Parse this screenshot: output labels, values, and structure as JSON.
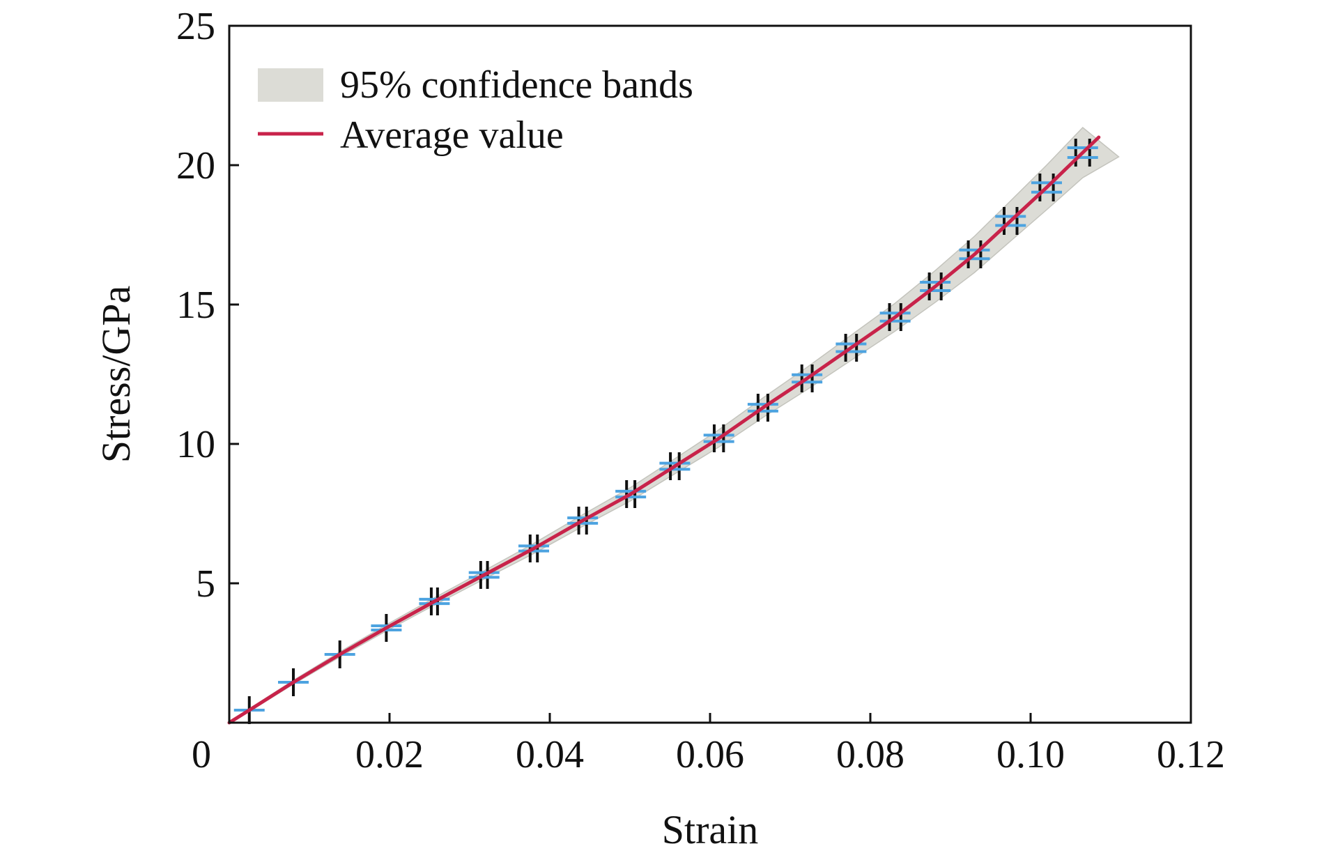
{
  "chart_data": {
    "type": "line",
    "xlabel": "Strain",
    "ylabel": "Stress/GPa",
    "xlim": [
      0,
      0.12
    ],
    "ylim": [
      0,
      25
    ],
    "x_ticks": [
      0,
      0.02,
      0.04,
      0.06,
      0.08,
      0.1,
      0.12
    ],
    "x_tick_labels": [
      "0",
      "0.02",
      "0.04",
      "0.06",
      "0.08",
      "0.10",
      "0.12"
    ],
    "y_ticks": [
      5,
      10,
      15,
      20,
      25
    ],
    "y_tick_labels": [
      "5",
      "10",
      "15",
      "20",
      "25"
    ],
    "grid": false,
    "legend": {
      "placement": "top-left",
      "entries": [
        {
          "label": "95% confidence bands",
          "kind": "band",
          "color": "#dcdcd6"
        },
        {
          "label": "Average value",
          "kind": "line",
          "color": "#c8234a"
        }
      ]
    },
    "series": [
      {
        "name": "Average value",
        "color": "#c8234a",
        "x": [
          0,
          0.0025,
          0.008,
          0.0138,
          0.0196,
          0.0256,
          0.0318,
          0.038,
          0.0441,
          0.0501,
          0.0556,
          0.0611,
          0.0666,
          0.0721,
          0.0776,
          0.0831,
          0.0881,
          0.093,
          0.0975,
          0.102,
          0.1065,
          0.1085
        ],
        "y": [
          0,
          0.45,
          1.45,
          2.45,
          3.4,
          4.35,
          5.3,
          6.25,
          7.25,
          8.2,
          9.2,
          10.2,
          11.3,
          12.35,
          13.45,
          14.55,
          15.65,
          16.8,
          18.0,
          19.2,
          20.45,
          21.0
        ]
      },
      {
        "name": "95% confidence bands",
        "color": "#dcdcd6",
        "x": [
          0,
          0.0025,
          0.008,
          0.0138,
          0.0196,
          0.0256,
          0.0318,
          0.038,
          0.0441,
          0.0501,
          0.0556,
          0.0611,
          0.0666,
          0.0721,
          0.0776,
          0.0831,
          0.0881,
          0.093,
          0.0975,
          0.102,
          0.1065,
          0.111
        ],
        "lower": [
          0,
          0.4,
          1.38,
          2.36,
          3.29,
          4.22,
          5.15,
          6.07,
          7.04,
          7.96,
          8.93,
          9.89,
          10.95,
          11.95,
          13.0,
          14.05,
          15.08,
          16.15,
          17.28,
          18.4,
          19.55,
          20.3
        ],
        "upper": [
          0,
          0.5,
          1.52,
          2.54,
          3.51,
          4.48,
          5.45,
          6.43,
          7.46,
          8.44,
          9.47,
          10.51,
          11.65,
          12.75,
          13.9,
          15.05,
          16.22,
          17.45,
          18.72,
          20.0,
          21.35,
          20.3
        ]
      }
    ],
    "error_markers": {
      "x": [
        0.0025,
        0.008,
        0.0138,
        0.0196,
        0.0256,
        0.0318,
        0.038,
        0.0441,
        0.0501,
        0.0556,
        0.0611,
        0.0666,
        0.0721,
        0.0776,
        0.0831,
        0.0881,
        0.093,
        0.0975,
        0.102,
        0.1065
      ],
      "y": [
        0.45,
        1.45,
        2.45,
        3.4,
        4.35,
        5.3,
        6.25,
        7.25,
        8.2,
        9.2,
        10.2,
        11.3,
        12.35,
        13.45,
        14.55,
        15.65,
        16.8,
        18.0,
        19.2,
        20.45
      ],
      "x_error_color": "#4da3e0",
      "y_error_color": "#111111"
    }
  }
}
